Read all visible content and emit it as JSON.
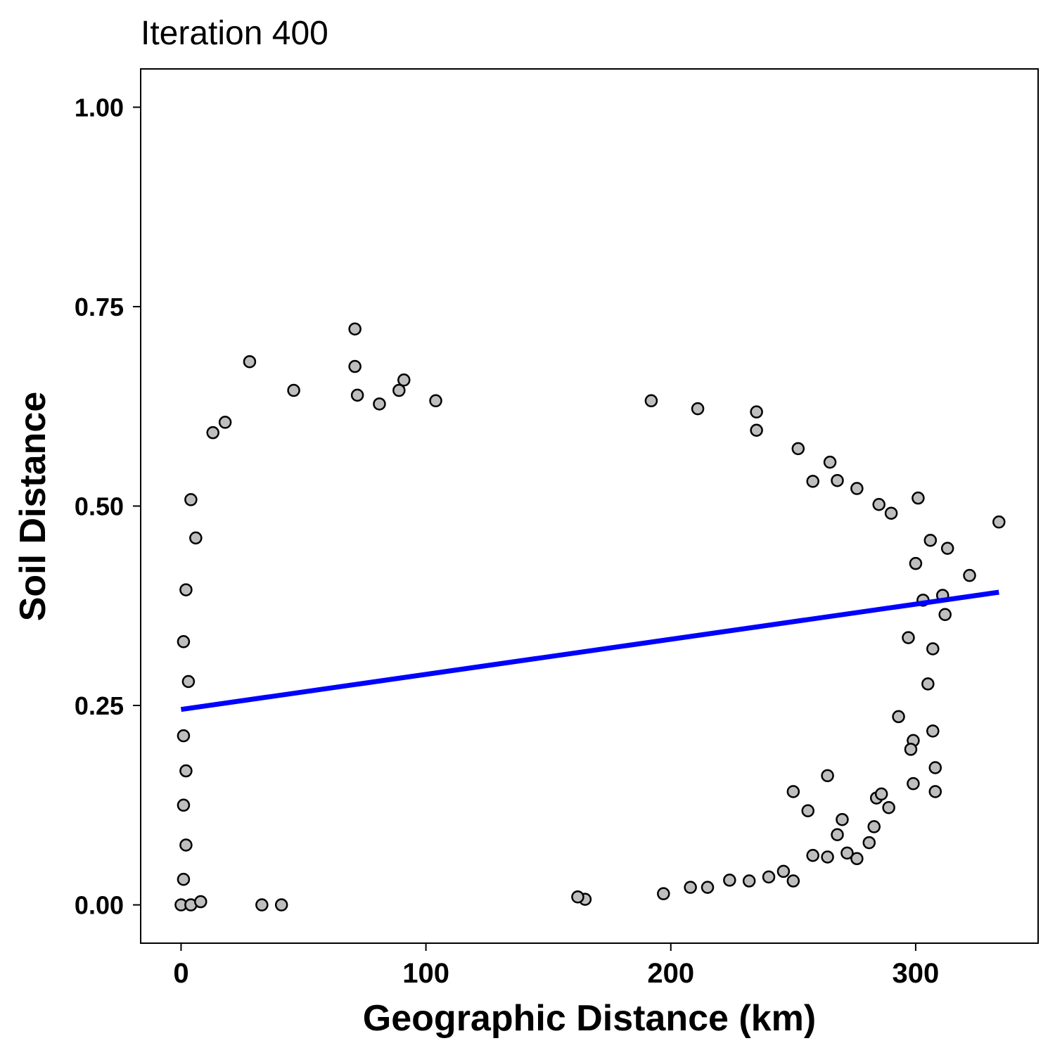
{
  "chart_data": {
    "type": "scatter",
    "title": "Iteration 400",
    "xlabel": "Geographic Distance (km)",
    "ylabel": "Soil Distance",
    "xlim": [
      -16.5,
      350
    ],
    "ylim": [
      -0.048,
      1.048
    ],
    "x_ticks": [
      0,
      100,
      200,
      300
    ],
    "x_tick_labels": [
      "0",
      "100",
      "200",
      "300"
    ],
    "y_ticks": [
      0.0,
      0.25,
      0.5,
      0.75,
      1.0
    ],
    "y_tick_labels": [
      "0.00",
      "0.25",
      "0.50",
      "0.75",
      "1.00"
    ],
    "grid": false,
    "point_fill": "#bebebe",
    "point_stroke": "#000000",
    "trend_color": "#0000ff",
    "trend_line": {
      "x": [
        0,
        334
      ],
      "y": [
        0.245,
        0.392
      ]
    },
    "points": [
      [
        71,
        0.722
      ],
      [
        28,
        0.681
      ],
      [
        71,
        0.675
      ],
      [
        91,
        0.658
      ],
      [
        46,
        0.645
      ],
      [
        89,
        0.645
      ],
      [
        72,
        0.639
      ],
      [
        192,
        0.632
      ],
      [
        104,
        0.632
      ],
      [
        81,
        0.628
      ],
      [
        211,
        0.622
      ],
      [
        235,
        0.618
      ],
      [
        18,
        0.605
      ],
      [
        13,
        0.592
      ],
      [
        235,
        0.595
      ],
      [
        252,
        0.572
      ],
      [
        265,
        0.555
      ],
      [
        258,
        0.531
      ],
      [
        268,
        0.532
      ],
      [
        276,
        0.522
      ],
      [
        285,
        0.502
      ],
      [
        301,
        0.51
      ],
      [
        334,
        0.48
      ],
      [
        290,
        0.491
      ],
      [
        306,
        0.457
      ],
      [
        313,
        0.447
      ],
      [
        322,
        0.413
      ],
      [
        300,
        0.428
      ],
      [
        311,
        0.388
      ],
      [
        303,
        0.382
      ],
      [
        312,
        0.364
      ],
      [
        297,
        0.335
      ],
      [
        307,
        0.321
      ],
      [
        305,
        0.277
      ],
      [
        293,
        0.236
      ],
      [
        307,
        0.218
      ],
      [
        299,
        0.206
      ],
      [
        298,
        0.195
      ],
      [
        308,
        0.172
      ],
      [
        299,
        0.152
      ],
      [
        308,
        0.142
      ],
      [
        289,
        0.122
      ],
      [
        284,
        0.134
      ],
      [
        283,
        0.098
      ],
      [
        281,
        0.078
      ],
      [
        276,
        0.058
      ],
      [
        4,
        0.508
      ],
      [
        6,
        0.46
      ],
      [
        2,
        0.395
      ],
      [
        1,
        0.33
      ],
      [
        3,
        0.28
      ],
      [
        1,
        0.212
      ],
      [
        2,
        0.168
      ],
      [
        1,
        0.125
      ],
      [
        2,
        0.075
      ],
      [
        1,
        0.032
      ],
      [
        0,
        0.0
      ],
      [
        4,
        0.0
      ],
      [
        8,
        0.004
      ],
      [
        33,
        0.0
      ],
      [
        41,
        0.0
      ],
      [
        165,
        0.007
      ],
      [
        162,
        0.01
      ],
      [
        197,
        0.014
      ],
      [
        208,
        0.022
      ],
      [
        215,
        0.022
      ],
      [
        224,
        0.031
      ],
      [
        232,
        0.03
      ],
      [
        250,
        0.03
      ],
      [
        264,
        0.06
      ],
      [
        258,
        0.062
      ],
      [
        246,
        0.042
      ],
      [
        240,
        0.035
      ],
      [
        272,
        0.065
      ],
      [
        250,
        0.142
      ],
      [
        256,
        0.118
      ],
      [
        270,
        0.107
      ],
      [
        268,
        0.088
      ],
      [
        286,
        0.139
      ],
      [
        264,
        0.162
      ]
    ]
  }
}
